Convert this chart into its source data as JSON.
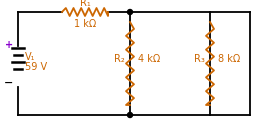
{
  "bg_color": "#ffffff",
  "wire_color": "#000000",
  "resistor_color": "#cc6600",
  "dot_color": "#000000",
  "text_color": "#cc6600",
  "plus_color": "#8800cc",
  "minus_color": "#000000",
  "V1_label": "V₁",
  "V1_value": "59 V",
  "R1_label": "R₁",
  "R1_value": "1 kΩ",
  "R2_label": "R₂",
  "R2_value": "4 kΩ",
  "R3_label": "R₃",
  "R3_value": "8 kΩ",
  "fig_width": 2.62,
  "fig_height": 1.27,
  "dpi": 100
}
